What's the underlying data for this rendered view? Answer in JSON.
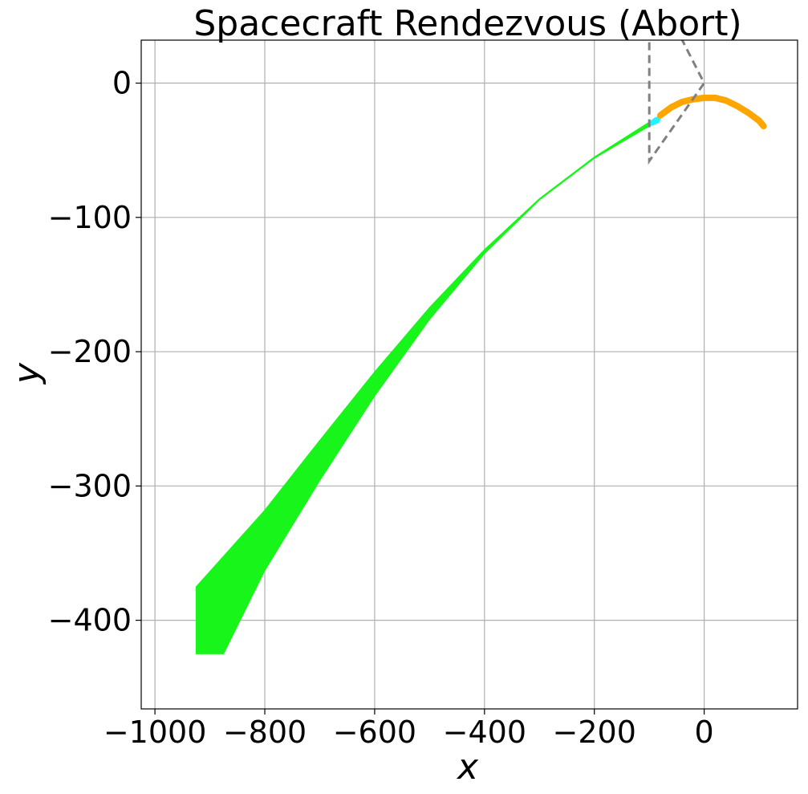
{
  "chart_data": {
    "type": "area",
    "title": "Spacecraft Rendezvous (Abort)",
    "xlabel": "x",
    "ylabel": "y",
    "xlim": [
      -1025,
      170
    ],
    "ylim": [
      -466,
      32
    ],
    "xticks": [
      -1000,
      -800,
      -600,
      -400,
      -200,
      0
    ],
    "yticks": [
      0,
      -100,
      -200,
      -300,
      -400
    ],
    "xtick_labels": [
      "−1000",
      "−800",
      "−600",
      "−400",
      "−200",
      "0"
    ],
    "ytick_labels": [
      "0",
      "−100",
      "−200",
      "−300",
      "−400"
    ],
    "grid": true,
    "series": [
      {
        "kind": "area",
        "color": "#17f51a",
        "upper": [
          [
            -925,
            -375
          ],
          [
            -800,
            -318
          ],
          [
            -700,
            -266
          ],
          [
            -600,
            -215
          ],
          [
            -500,
            -167
          ],
          [
            -400,
            -124
          ],
          [
            -300,
            -86
          ],
          [
            -200,
            -55
          ],
          [
            -100,
            -29
          ]
        ],
        "lower": [
          [
            -925,
            -425
          ],
          [
            -875,
            -425
          ],
          [
            -800,
            -363
          ],
          [
            -700,
            -296
          ],
          [
            -600,
            -233
          ],
          [
            -500,
            -176
          ],
          [
            -400,
            -127
          ],
          [
            -300,
            -87
          ],
          [
            -200,
            -56
          ],
          [
            -100,
            -32
          ]
        ]
      },
      {
        "kind": "area",
        "color": "#1ff5ff",
        "upper": [
          [
            -100,
            -29
          ],
          [
            -90,
            -26
          ],
          [
            -78,
            -24
          ]
        ],
        "lower": [
          [
            -100,
            -32
          ],
          [
            -92,
            -31
          ],
          [
            -82,
            -29
          ]
        ]
      },
      {
        "kind": "line",
        "color": "#ffa500",
        "width": 8,
        "points": [
          [
            -80,
            -24
          ],
          [
            -60,
            -18
          ],
          [
            -40,
            -14
          ],
          [
            -20,
            -12
          ],
          [
            0,
            -11
          ],
          [
            20,
            -11
          ],
          [
            40,
            -13
          ],
          [
            60,
            -17
          ],
          [
            80,
            -22
          ],
          [
            100,
            -28
          ],
          [
            108,
            -32
          ]
        ]
      },
      {
        "kind": "dashed",
        "color": "#808080",
        "points": [
          [
            -100,
            40
          ],
          [
            -100,
            -58
          ],
          [
            0,
            0
          ],
          [
            -50,
            40
          ]
        ]
      }
    ]
  }
}
